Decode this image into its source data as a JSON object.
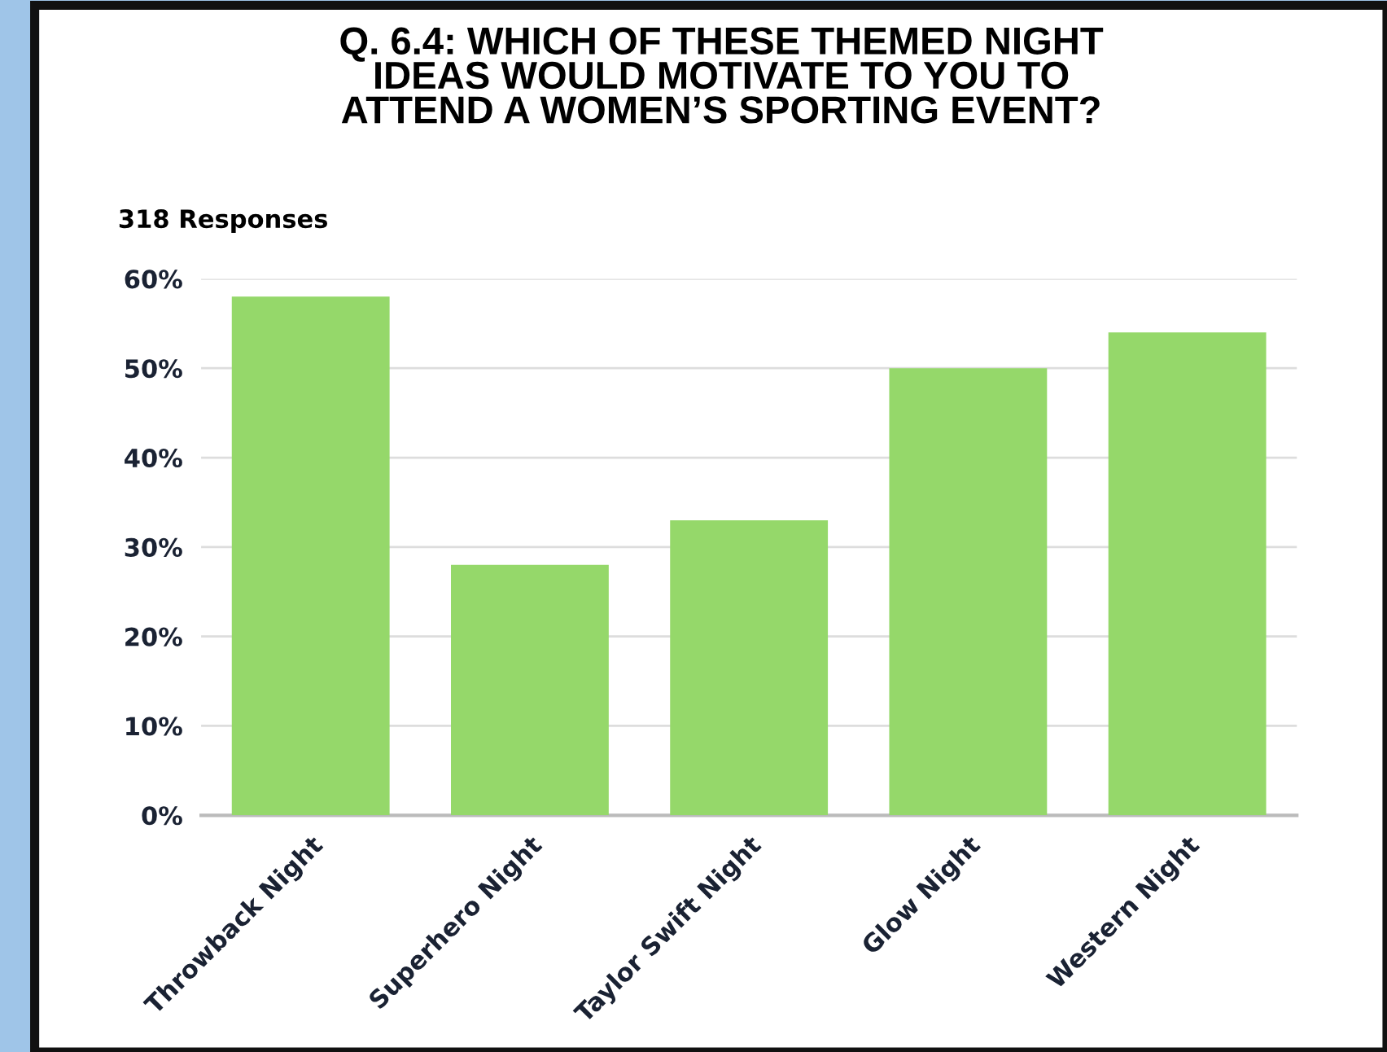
{
  "chart_data": {
    "type": "bar",
    "title": "Q. 6.4: WHICH OF THESE THEMED NIGHT\nIDEAS WOULD MOTIVATE TO YOU TO\nATTEND A WOMEN’S SPORTING EVENT?",
    "subtitle": "318 Responses",
    "categories": [
      "Throwback Night",
      "Superhero Night",
      "Taylor Swift Night",
      "Glow Night",
      "Western Night"
    ],
    "values": [
      58,
      28,
      33,
      50,
      54
    ],
    "color": "#95d86a",
    "ylim": [
      0,
      60
    ],
    "yticks": [
      {
        "value": 0,
        "label": "0%"
      },
      {
        "value": 10,
        "label": "10%"
      },
      {
        "value": 20,
        "label": "20%"
      },
      {
        "value": 30,
        "label": "30%"
      },
      {
        "value": 40,
        "label": "40%"
      },
      {
        "value": 50,
        "label": "50%"
      },
      {
        "value": 60,
        "label": "60%"
      }
    ],
    "grid": "y"
  }
}
